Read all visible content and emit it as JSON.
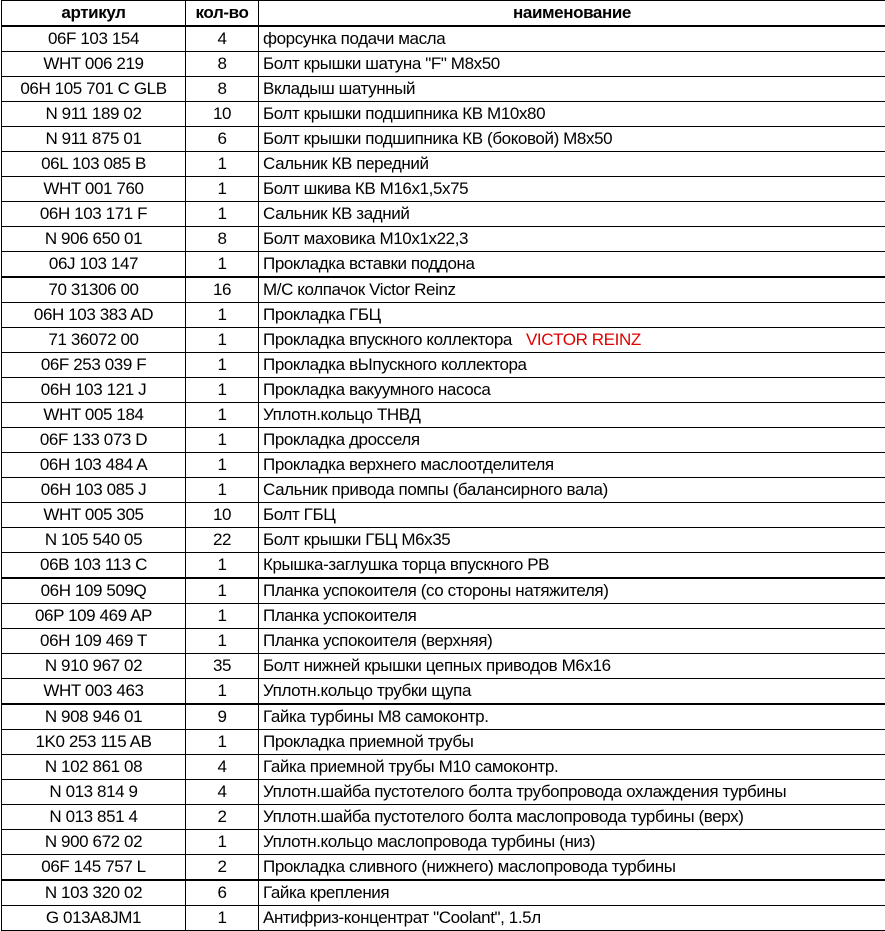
{
  "headers": {
    "article": "артикул",
    "qty": "кол-во",
    "name": "наименование"
  },
  "accent_color": "#e00000",
  "rows": [
    {
      "article": "06F 103 154",
      "qty": "4",
      "name": "форсунка подачи масла"
    },
    {
      "article": "WHT 006 219",
      "qty": "8",
      "name": "Болт крышки шатуна \"F\" М8х50"
    },
    {
      "article": "06H 105 701 C GLB",
      "qty": "8",
      "name": "Вкладыш шатунный"
    },
    {
      "article": "N 911 189 02",
      "qty": "10",
      "name": "Болт крышки подшипника КВ М10х80"
    },
    {
      "article": "N 911 875 01",
      "qty": "6",
      "name": "Болт крышки подшипника КВ (боковой) М8х50"
    },
    {
      "article": "06L 103 085 B",
      "qty": "1",
      "name": "Сальник КВ передний"
    },
    {
      "article": "WHT 001 760",
      "qty": "1",
      "name": "Болт шкива КВ М16х1,5х75"
    },
    {
      "article": "06H 103 171 F",
      "qty": "1",
      "name": "Сальник КВ задний"
    },
    {
      "article": "N 906 650 01",
      "qty": "8",
      "name": "Болт маховика М10х1х22,3"
    },
    {
      "article": "06J 103 147",
      "qty": "1",
      "name": "Прокладка вставки поддона"
    },
    {
      "article": "70 31306 00",
      "qty": "16",
      "name": "М/С колпачок Victor Reinz"
    },
    {
      "article": "06H 103 383 AD",
      "qty": "1",
      "name": "Прокладка ГБЦ"
    },
    {
      "article": "71 36072 00",
      "qty": "1",
      "name": "Прокладка впускного коллектора",
      "note": "VICTOR REINZ"
    },
    {
      "article": "06F 253 039 F",
      "qty": "1",
      "name": "Прокладка вЫпускного коллектора"
    },
    {
      "article": "06H 103 121 J",
      "qty": "1",
      "name": "Прокладка вакуумного насоса"
    },
    {
      "article": "WHT 005 184",
      "qty": "1",
      "name": "Уплотн.кольцо ТНВД"
    },
    {
      "article": "06F 133 073 D",
      "qty": "1",
      "name": "Прокладка дросселя"
    },
    {
      "article": "06H 103 484 A",
      "qty": "1",
      "name": "Прокладка верхнего маслоотделителя"
    },
    {
      "article": "06H 103 085 J",
      "qty": "1",
      "name": "Сальник привода помпы (балансирного вала)"
    },
    {
      "article": "WHT 005 305",
      "qty": "10",
      "name": "Болт ГБЦ"
    },
    {
      "article": "N 105 540 05",
      "qty": "22",
      "name": "Болт крышки ГБЦ М6х35"
    },
    {
      "article": "06B 103 113 C",
      "qty": "1",
      "name": "Крышка-заглушка торца впускного РВ"
    },
    {
      "article": "06H 109 509Q",
      "qty": "1",
      "name": "Планка успокоителя (со стороны натяжителя)"
    },
    {
      "article": "06P 109 469 AP",
      "qty": "1",
      "name": "Планка успокоителя"
    },
    {
      "article": "06H 109 469 T",
      "qty": "1",
      "name": "Планка успокоителя (верхняя)"
    },
    {
      "article": "N 910 967 02",
      "qty": "35",
      "name": "Болт нижней крышки цепных приводов М6х16"
    },
    {
      "article": "WHT 003 463",
      "qty": "1",
      "name": "Уплотн.кольцо трубки щупа"
    },
    {
      "article": "N 908 946 01",
      "qty": "9",
      "name": "Гайка турбины М8 самоконтр."
    },
    {
      "article": "1K0 253 115 AB",
      "qty": "1",
      "name": "Прокладка приемной трубы"
    },
    {
      "article": "N 102 861 08",
      "qty": "4",
      "name": "Гайка приемной трубы М10 самоконтр."
    },
    {
      "article": "N 013 814 9",
      "qty": "4",
      "name": "Уплотн.шайба пустотелого болта трубопровода охлаждения турбины"
    },
    {
      "article": "N 013 851 4",
      "qty": "2",
      "name": "Уплотн.шайба пустотелого болта маслопровода турбины (верх)"
    },
    {
      "article": "N 900 672 02",
      "qty": "1",
      "name": "Уплотн.кольцо маслопровода турбины (низ)"
    },
    {
      "article": "06F 145 757 L",
      "qty": "2",
      "name": "Прокладка сливного (нижнего) маслопровода турбины"
    },
    {
      "article": "N 103 320 02",
      "qty": "6",
      "name": "Гайка крепления"
    },
    {
      "article": "G 013A8JM1",
      "qty": "1",
      "name": "Антифриз-концентрат \"Coolant\", 1.5л"
    }
  ]
}
